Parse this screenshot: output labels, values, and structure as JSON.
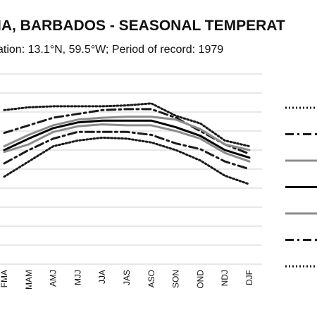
{
  "chart_data": {
    "type": "line",
    "title": "IA, BARBADOS - SEASONAL TEMPERAT",
    "subtitle": "ation: 13.1°N, 59.5°W; Period of record: 1979",
    "categories": [
      "FMA",
      "MAM",
      "AMJ",
      "MJJ",
      "JJA",
      "JAS",
      "ASO",
      "SON",
      "OND",
      "NDJ",
      "DJF"
    ],
    "ylim": [
      0,
      10
    ],
    "grid": true,
    "legend_position": "right",
    "series": [
      {
        "style": "dotted",
        "color": "#1a1a1a",
        "values": [
          8.1,
          8.25,
          8.3,
          8.3,
          8.3,
          8.35,
          8.45,
          7.8,
          7.4,
          6.5,
          6.2
        ]
      },
      {
        "style": "dashdot",
        "color": "#1a1a1a",
        "values": [
          6.9,
          7.3,
          7.7,
          7.9,
          8.1,
          8.15,
          8.15,
          7.7,
          7.0,
          6.3,
          5.8
        ]
      },
      {
        "style": "solid",
        "color": "#8c8c8c",
        "values": [
          6.2,
          6.8,
          7.3,
          7.6,
          7.7,
          7.75,
          7.75,
          7.6,
          7.1,
          6.3,
          6.0
        ]
      },
      {
        "style": "solid",
        "color": "#000000",
        "values": [
          6.0,
          6.6,
          7.15,
          7.45,
          7.55,
          7.55,
          7.55,
          7.2,
          6.75,
          6.0,
          5.6
        ]
      },
      {
        "style": "solid",
        "color": "#8c8c8c",
        "values": [
          5.9,
          6.3,
          6.95,
          7.25,
          7.35,
          7.3,
          7.3,
          7.0,
          6.6,
          5.85,
          5.4
        ]
      },
      {
        "style": "dashdot",
        "color": "#1a1a1a",
        "values": [
          5.3,
          6.0,
          6.6,
          6.95,
          6.95,
          6.95,
          6.8,
          6.35,
          6.05,
          5.4,
          5.0
        ]
      },
      {
        "style": "dotted",
        "color": "#1a1a1a",
        "values": [
          4.6,
          5.4,
          6.2,
          6.5,
          6.65,
          6.6,
          6.4,
          6.0,
          5.45,
          4.65,
          4.2
        ]
      }
    ]
  }
}
